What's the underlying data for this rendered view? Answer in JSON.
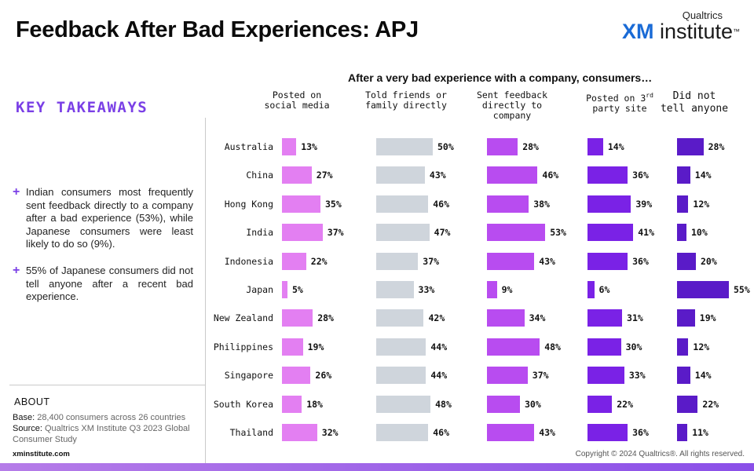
{
  "title": "Feedback After Bad Experiences: APJ",
  "logo": {
    "top": "Qualtrics",
    "xm": "XM",
    "rest": " institute",
    "tm": "™"
  },
  "chart_subtitle": "After a very bad experience with a company, consumers…",
  "takeaways": {
    "title": "KEY TAKEAWAYS",
    "plus": "+",
    "items": [
      "Indian consumers most frequently sent feedback directly to a company after a bad experience (53%), while Japanese consumers were least likely to do so (9%).",
      "55% of Japanese consumers did not tell anyone after a recent bad experience."
    ]
  },
  "about": {
    "title": "ABOUT",
    "base_label": "Base:",
    "base": " 28,400 consumers across 26 countries",
    "source_label": "Source:",
    "source": " Qualtrics XM Institute Q3 2023 Global Consumer Study",
    "site": "xminstitute.com"
  },
  "copyright": "Copyright © 2024 Qualtrics®. All rights reserved.",
  "colors": {
    "social": "#e37ff2",
    "friends": "#cfd5dc",
    "company": "#b84cf0",
    "third_party": "#7a22e6",
    "nobody": "#5a1bc8"
  },
  "chart_data": {
    "type": "bar",
    "orientation": "horizontal",
    "title": "After a very bad experience with a company, consumers…",
    "categories": [
      "Australia",
      "China",
      "Hong Kong",
      "India",
      "Indonesia",
      "Japan",
      "New Zealand",
      "Philippines",
      "Singapore",
      "South Korea",
      "Thailand"
    ],
    "value_format": "percent",
    "series": [
      {
        "name": "Posted on social media",
        "values": [
          13,
          27,
          35,
          37,
          22,
          5,
          28,
          19,
          26,
          18,
          32
        ]
      },
      {
        "name": "Told friends or family directly",
        "values": [
          50,
          43,
          46,
          47,
          37,
          33,
          42,
          44,
          44,
          48,
          46
        ]
      },
      {
        "name": "Sent feedback directly to company",
        "values": [
          28,
          46,
          38,
          53,
          43,
          9,
          34,
          48,
          37,
          30,
          43
        ]
      },
      {
        "name": "Posted on 3rd party site",
        "values": [
          14,
          36,
          39,
          41,
          36,
          6,
          31,
          30,
          33,
          22,
          36
        ]
      },
      {
        "name": "Did not tell anyone",
        "values": [
          28,
          14,
          12,
          10,
          20,
          55,
          19,
          12,
          14,
          22,
          11
        ]
      }
    ]
  }
}
